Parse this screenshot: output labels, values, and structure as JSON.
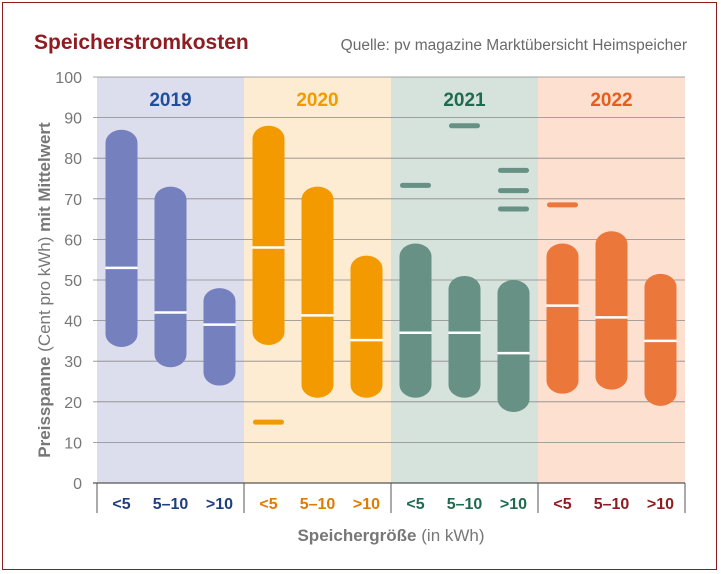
{
  "chart_data": {
    "type": "range-bar",
    "title": "Speicherstromkosten",
    "source": "Quelle: pv magazine Marktübersicht Heimspeicher",
    "ylabel_bold": "Preisspanne",
    "ylabel_normal": "(Cent pro kWh)",
    "ylabel_bold2": "mit Mittelwert",
    "xlabel_bold": "Speichergröße",
    "xlabel_normal": "(in kWh)",
    "ylim": [
      0,
      100
    ],
    "yticks": [
      "0",
      "10",
      "20",
      "30",
      "40",
      "50",
      "60",
      "70",
      "80",
      "90",
      "100"
    ],
    "categories": [
      "<5",
      "5–10",
      ">10"
    ],
    "groups": [
      {
        "year": "2019",
        "bg": "#dcdeee",
        "bar_color": "#7580be",
        "label_color": "#1f4e9a",
        "tick_color": "#1f3f7f",
        "bars": [
          {
            "low": 33.5,
            "high": 87,
            "mean": 53,
            "outliers": []
          },
          {
            "low": 28.5,
            "high": 73,
            "mean": 42,
            "outliers": []
          },
          {
            "low": 24,
            "high": 48,
            "mean": 39,
            "outliers": []
          }
        ]
      },
      {
        "year": "2020",
        "bg": "#fdecd2",
        "bar_color": "#f29a00",
        "label_color": "#f29a00",
        "tick_color": "#e07b00",
        "bars": [
          {
            "low": 34,
            "high": 88,
            "mean": 58,
            "outliers": [
              15
            ]
          },
          {
            "low": 21,
            "high": 73,
            "mean": 41.3,
            "outliers": []
          },
          {
            "low": 21,
            "high": 56,
            "mean": 35.2,
            "outliers": []
          }
        ]
      },
      {
        "year": "2021",
        "bg": "#d6e2dc",
        "bar_color": "#679184",
        "label_color": "#1f6b4f",
        "tick_color": "#1f6b4f",
        "bars": [
          {
            "low": 21,
            "high": 59,
            "mean": 37,
            "outliers": [
              73.3
            ]
          },
          {
            "low": 21,
            "high": 51,
            "mean": 37,
            "outliers": [
              88
            ]
          },
          {
            "low": 17.5,
            "high": 50,
            "mean": 32,
            "outliers": [
              67.5,
              72,
              77
            ]
          }
        ]
      },
      {
        "year": "2022",
        "bg": "#fde0d0",
        "bar_color": "#ec773b",
        "label_color": "#e85c1c",
        "tick_color": "#8e1d22",
        "bars": [
          {
            "low": 22,
            "high": 59,
            "mean": 43.7,
            "outliers": [
              68.5
            ]
          },
          {
            "low": 23,
            "high": 62,
            "mean": 40.8,
            "outliers": []
          },
          {
            "low": 19,
            "high": 51.5,
            "mean": 35,
            "outliers": []
          }
        ]
      }
    ]
  }
}
